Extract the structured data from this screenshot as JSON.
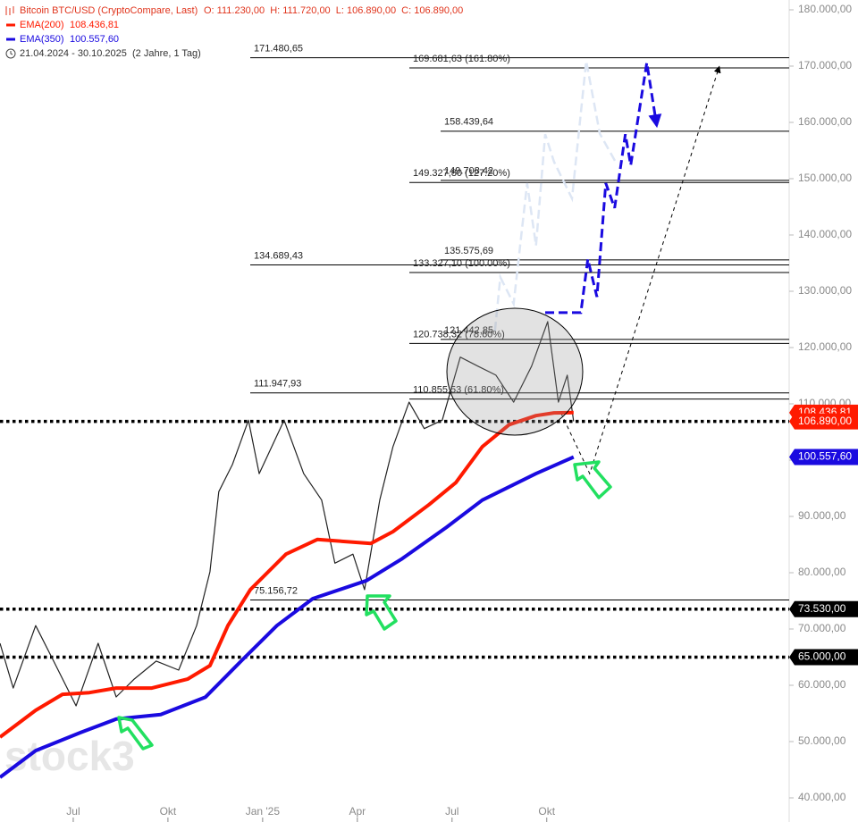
{
  "chart_data": {
    "type": "line",
    "title": "Bitcoin BTC/USD (CryptoCompare, Last)",
    "ohlc_text": "O: 111.230,00  H: 111.720,00  L: 106.890,00  C: 106.890,00",
    "date_range": "21.04.2024 - 30.10.2025  (2 Jahre, 1 Tag)",
    "watermark": "stock3",
    "xlim": [
      3.68,
      28.68
    ],
    "xticks": [
      {
        "value": 6,
        "label": "Jul"
      },
      {
        "value": 9,
        "label": "Okt"
      },
      {
        "value": 12,
        "label": "Jan '25"
      },
      {
        "value": 15,
        "label": "Apr"
      },
      {
        "value": 18,
        "label": "Jul"
      },
      {
        "value": 21,
        "label": "Okt"
      }
    ],
    "ylim": [
      40000,
      180000
    ],
    "yticks": [
      {
        "value": 40000,
        "label": "40.000,00"
      },
      {
        "value": 50000,
        "label": "50.000,00"
      },
      {
        "value": 60000,
        "label": "60.000,00"
      },
      {
        "value": 70000,
        "label": "70.000,00"
      },
      {
        "value": 80000,
        "label": "80.000,00"
      },
      {
        "value": 90000,
        "label": "90.000,00"
      },
      {
        "value": 100000,
        "label": "100.000,00"
      },
      {
        "value": 110000,
        "label": "110.000,00"
      },
      {
        "value": 120000,
        "label": "120.000,00"
      },
      {
        "value": 130000,
        "label": "130.000,00"
      },
      {
        "value": 140000,
        "label": "140.000,00"
      },
      {
        "value": 150000,
        "label": "150.000,00"
      },
      {
        "value": 160000,
        "label": "160.000,00"
      },
      {
        "value": 170000,
        "label": "170.000,00"
      },
      {
        "value": 180000,
        "label": "180.000,00"
      }
    ],
    "series": [
      {
        "name": "Bitcoin BTC/USD",
        "color": "#222222",
        "width": 1.2,
        "x": [
          3.68,
          4.1,
          4.81,
          5.38,
          6.09,
          6.79,
          7.36,
          7.93,
          8.63,
          9.34,
          9.91,
          10.33,
          10.61,
          11.04,
          11.55,
          11.89,
          12.68,
          13.3,
          13.87,
          14.29,
          14.86,
          15.23,
          15.71,
          16.13,
          16.64,
          17.12,
          17.69,
          18.26,
          18.82,
          19.39,
          19.95,
          20.52,
          21.03,
          21.37,
          21.65,
          21.85
        ],
        "values": [
          67460,
          59500,
          70600,
          64300,
          56350,
          67460,
          57940,
          61100,
          64300,
          62700,
          70600,
          80160,
          94400,
          99200,
          107100,
          97600,
          107100,
          97600,
          92900,
          81700,
          83300,
          77000,
          92900,
          102400,
          110300,
          105600,
          107100,
          118300,
          116700,
          115100,
          110300,
          116700,
          124600,
          110300,
          115100,
          106890
        ]
      },
      {
        "name": "EMA(200)",
        "legend_value": "108.436,81",
        "color": "#ff1a00",
        "width": 4,
        "x": [
          3.68,
          4.81,
          5.66,
          6.51,
          7.36,
          8.49,
          9.62,
          10.33,
          10.9,
          11.61,
          12.74,
          13.73,
          15.43,
          16.13,
          17.27,
          18.12,
          18.96,
          19.81,
          20.66,
          21.23,
          21.85
        ],
        "values": [
          50800,
          55560,
          58400,
          58700,
          59500,
          59500,
          61100,
          63500,
          70600,
          77000,
          83300,
          85900,
          85200,
          87300,
          92100,
          96000,
          102400,
          106300,
          107900,
          108400,
          108436.81
        ]
      },
      {
        "name": "EMA(350)",
        "legend_value": "100.557,60",
        "color": "#1a0ae0",
        "width": 4,
        "x": [
          3.68,
          4.81,
          6.23,
          7.36,
          8.77,
          10.19,
          11.32,
          12.45,
          13.59,
          15.29,
          16.42,
          17.83,
          18.96,
          20.66,
          21.85
        ],
        "values": [
          43650,
          48400,
          51600,
          54000,
          54800,
          57900,
          64300,
          70600,
          75400,
          78600,
          82500,
          88100,
          92900,
          97600,
          100557.6
        ]
      }
    ],
    "projections": [
      {
        "color": "#dde6f4",
        "width": 2.5,
        "x": [
          19.36,
          19.53,
          19.95,
          20.38,
          20.66,
          20.95,
          21.23,
          21.8,
          22.25,
          22.68,
          23.18
        ],
        "values": [
          123000,
          132500,
          127800,
          149200,
          138100,
          157900,
          153000,
          146500,
          170900,
          158000,
          153000
        ]
      },
      {
        "color": "#1a0ae0",
        "width": 3,
        "arrow": true,
        "x": [
          20.95,
          22.08,
          22.3,
          22.59,
          22.87,
          23.15,
          23.49,
          23.66,
          24.17,
          24.48
        ],
        "values": [
          126200,
          126200,
          135700,
          129000,
          149200,
          144800,
          157900,
          152400,
          170600,
          159500
        ]
      },
      {
        "color": "#000000",
        "width": 1,
        "arrow": true,
        "x": [
          21.45,
          22.36,
          26.46
        ],
        "values": [
          108400,
          97600,
          169840
        ]
      }
    ],
    "fib_extension_levels": [
      {
        "value": 171480.65,
        "label": "171.480,65"
      },
      {
        "value": 134689.43,
        "label": "134.689,43"
      },
      {
        "value": 111947.93,
        "label": "111.947,93"
      },
      {
        "value": 75156.72,
        "label": "75.156,72"
      }
    ],
    "fib_retracement_levels": [
      {
        "value": 169681.63,
        "label": "169.681,63 (161.80%)"
      },
      {
        "value": 149327.8,
        "label": "149.327,80 (127.20%)"
      },
      {
        "value": 133327.1,
        "label": "133.327,10 (100.00%)"
      },
      {
        "value": 120738.32,
        "label": "120.738,32 (78.60%)"
      },
      {
        "value": 110855.53,
        "label": "110.855,53 (61.80%)"
      }
    ],
    "target_levels": [
      {
        "value": 158439.64,
        "label": "158.439,64"
      },
      {
        "value": 149708.42,
        "label": "149.708,42"
      },
      {
        "value": 135575.69,
        "label": "135.575,69"
      },
      {
        "value": 121442.85,
        "label": "121.442,85"
      }
    ],
    "horizontal_levels": [
      106890,
      73530,
      65000
    ],
    "price_badges": [
      {
        "value": 108436.81,
        "label": "108.436,81",
        "color": "#ff1a00"
      },
      {
        "value": 106890,
        "label": "106.890,00",
        "color": "#ff1a00"
      },
      {
        "value": 100557.6,
        "label": "100.557,60",
        "color": "#1a0ae0"
      },
      {
        "value": 73530,
        "label": "73.530,00",
        "color": "#000000"
      },
      {
        "value": 65000,
        "label": "65.000,00",
        "color": "#000000"
      }
    ]
  }
}
